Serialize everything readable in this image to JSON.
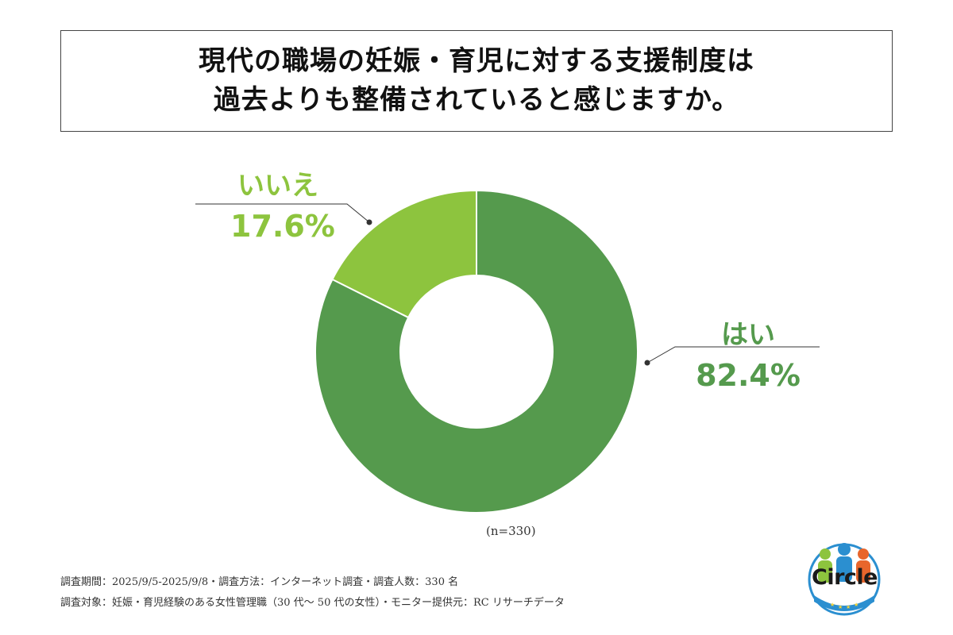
{
  "title": {
    "line1": "現代の職場の妊娠・育児に対する支援制度は",
    "line2": "過去よりも整備されていると感じますか。"
  },
  "chart_data": {
    "type": "pie",
    "donut": true,
    "slices": [
      {
        "label": "はい",
        "value": 82.4,
        "value_text": "82.4%",
        "color": "#559a4d"
      },
      {
        "label": "いいえ",
        "value": 17.6,
        "value_text": "17.6%",
        "color": "#8dc43e"
      }
    ],
    "sample_note": "(n=330)"
  },
  "footer": {
    "line1": "調査期間：2025/9/5-2025/9/8・調査方法：インターネット調査・調査人数：330 名",
    "line2": "調査対象：妊娠・育児経験のある女性管理職（30 代〜 50 代の女性）・モニター提供元：RC リサーチデータ"
  },
  "logo": {
    "text": "Circle",
    "colors": [
      "#8dc43e",
      "#2b8fd0",
      "#e8662c"
    ]
  }
}
